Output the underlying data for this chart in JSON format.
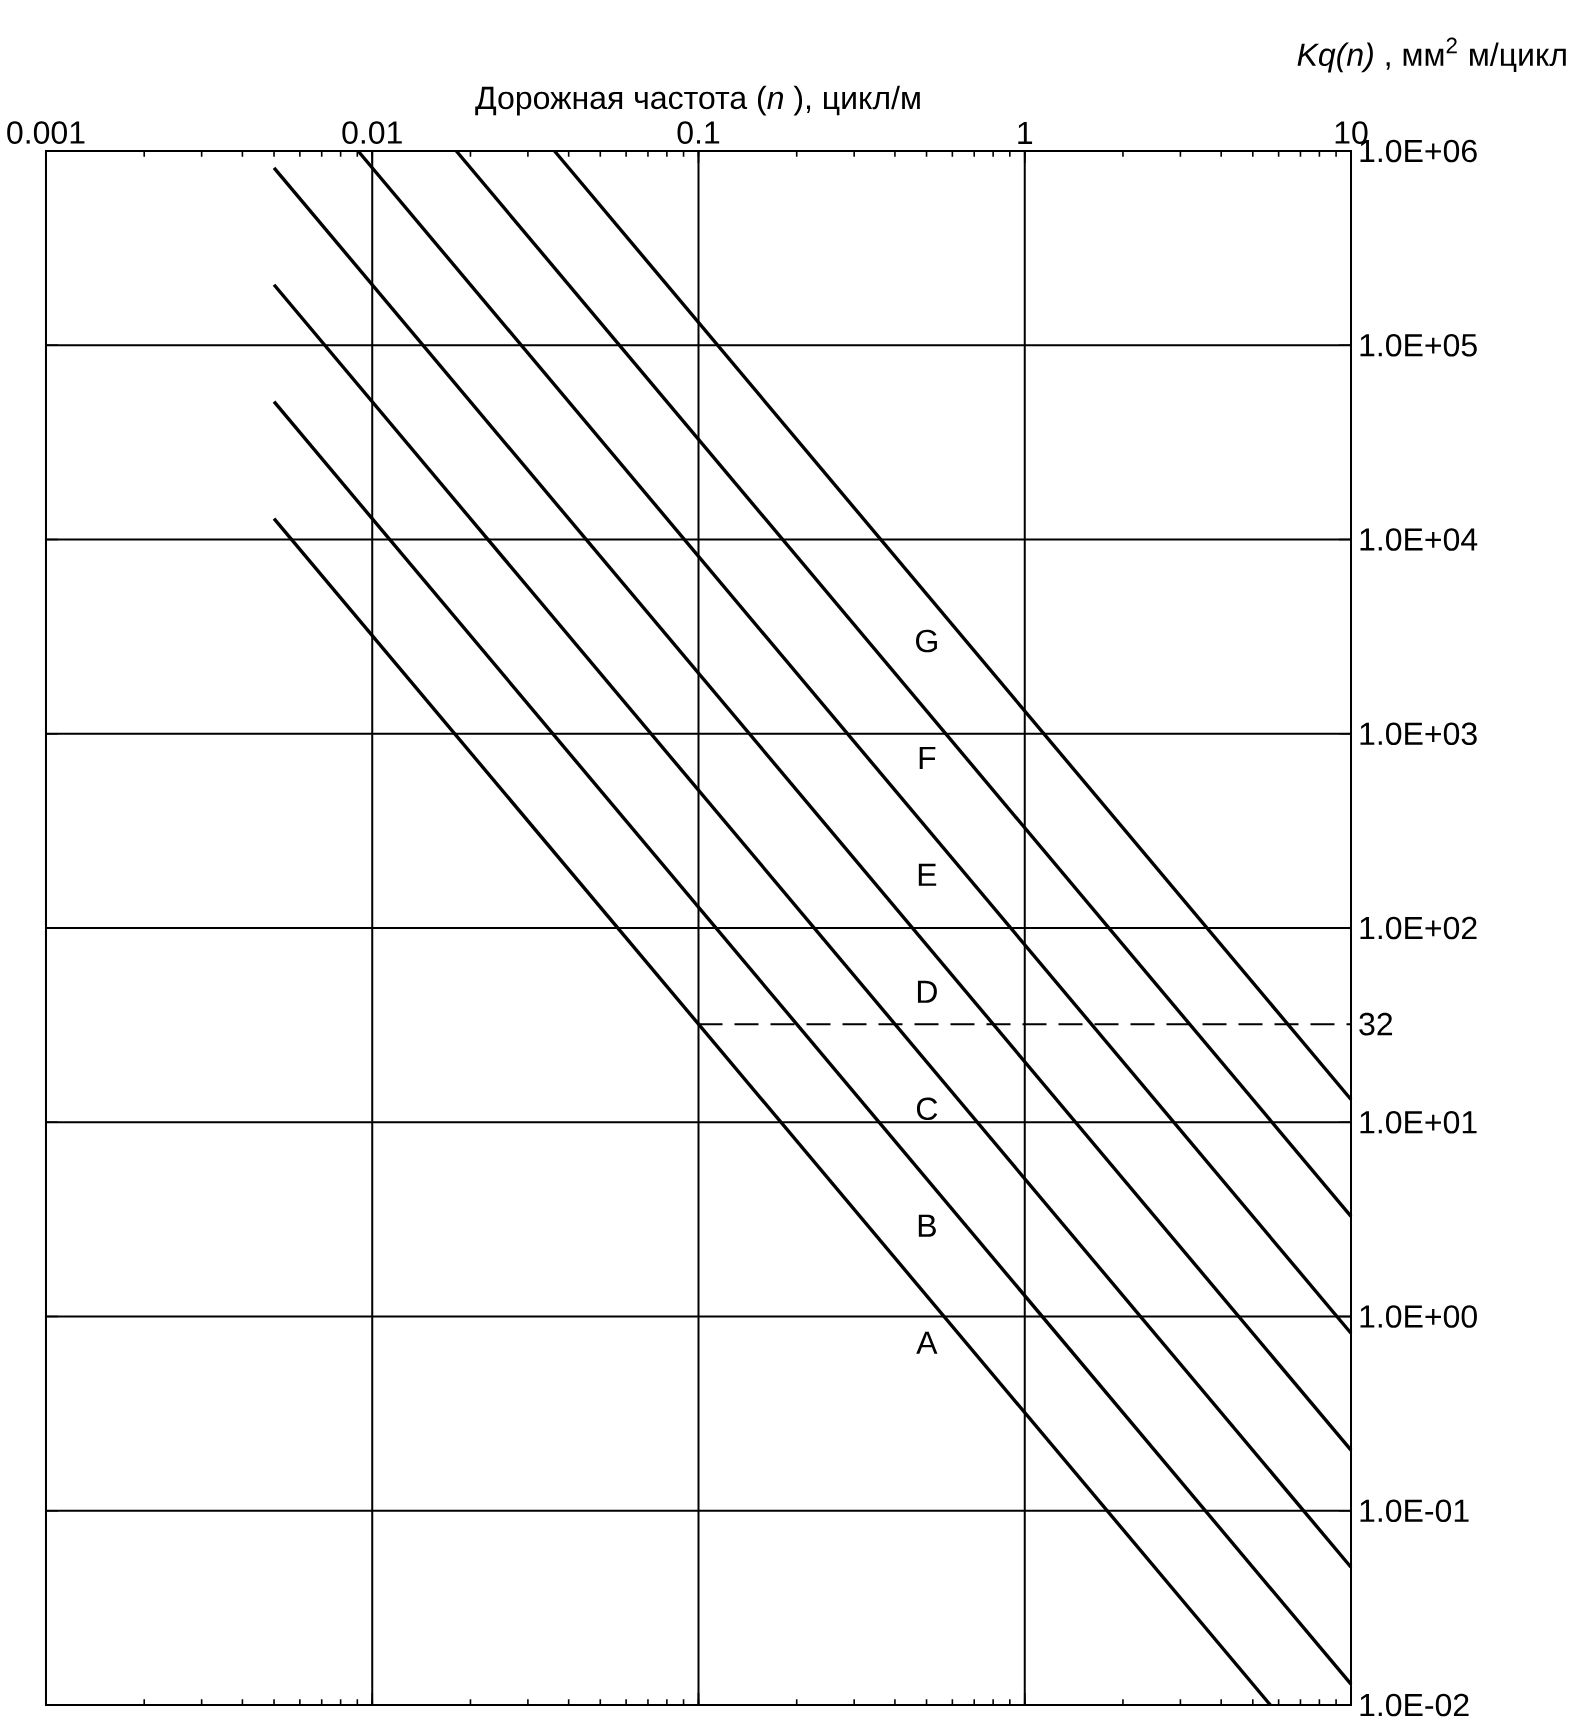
{
  "chart_data": {
    "type": "line",
    "xlabel": "Дорожная  частота (*n* ), цикл/м",
    "ylabel": "*Kq(n)* , мм$^{2}$ м/цикл",
    "log": "xy",
    "grid": true,
    "xlim": [
      0.001,
      10
    ],
    "ylim": [
      0.01,
      1000000
    ],
    "xticks": [
      0.001,
      0.01,
      0.1,
      1,
      10
    ],
    "yticks": [
      {
        "value": 1000000,
        "label": "1.0E+06"
      },
      {
        "value": 100000,
        "label": "1.0E+05"
      },
      {
        "value": 10000,
        "label": "1.0E+04"
      },
      {
        "value": 1000,
        "label": "1.0E+03"
      },
      {
        "value": 100,
        "label": "1.0E+02"
      },
      {
        "value": 32,
        "label": "32"
      },
      {
        "value": 10,
        "label": "1.0E+01"
      },
      {
        "value": 1,
        "label": "1.0E+00"
      },
      {
        "value": 0.1,
        "label": "1.0E-01"
      },
      {
        "value": 0.01,
        "label": "1.0E-02"
      }
    ],
    "series": [
      {
        "color": "#000000",
        "x": [
          0.005,
          5.66
        ],
        "values": [
          12800,
          0.01
        ]
      },
      {
        "color": "#000000",
        "x": [
          0.005,
          10
        ],
        "values": [
          51200,
          0.0128
        ]
      },
      {
        "color": "#000000",
        "x": [
          0.005,
          10
        ],
        "values": [
          204800,
          0.0512
        ]
      },
      {
        "color": "#000000",
        "x": [
          0.005,
          10
        ],
        "values": [
          819200,
          0.205
        ]
      },
      {
        "color": "#000000",
        "x": [
          0.00905,
          10
        ],
        "values": [
          1000000,
          0.82
        ]
      },
      {
        "color": "#000000",
        "x": [
          0.0181,
          10
        ],
        "values": [
          1000000,
          3.28
        ]
      },
      {
        "color": "#000000",
        "x": [
          0.0362,
          10
        ],
        "values": [
          1000000,
          13.1
        ]
      },
      {
        "color": "#000000",
        "x": [
          0.1,
          10
        ],
        "values": [
          32,
          32
        ],
        "line_style": "dashed"
      }
    ],
    "annotations": [
      "A",
      "B",
      "C",
      "D",
      "E",
      "F",
      "G"
    ]
  }
}
